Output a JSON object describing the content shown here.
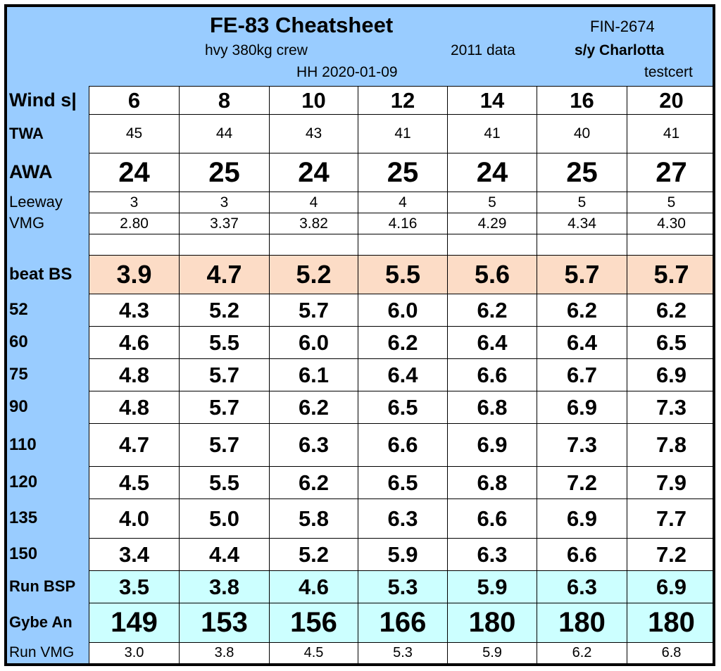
{
  "header": {
    "title": "FE-83 Cheatsheet",
    "sail_number": "FIN-2674",
    "crew": "hvy 380kg crew",
    "data_year": "2011 data",
    "yacht": "s/y Charlotta",
    "author_date": "HH 2020-01-09",
    "cert": "testcert"
  },
  "columns": {
    "label": "Wind s|",
    "wind_speeds": [
      "6",
      "8",
      "10",
      "12",
      "14",
      "16",
      "20"
    ]
  },
  "rows": {
    "twa": {
      "label": "TWA",
      "values": [
        "45",
        "44",
        "43",
        "41",
        "41",
        "40",
        "41"
      ]
    },
    "awa": {
      "label": "AWA",
      "values": [
        "24",
        "25",
        "24",
        "25",
        "24",
        "25",
        "27"
      ]
    },
    "leeway": {
      "label": "Leeway",
      "values": [
        "3",
        "3",
        "4",
        "4",
        "5",
        "5",
        "5"
      ]
    },
    "vmg": {
      "label": "VMG",
      "values": [
        "2.80",
        "3.37",
        "3.82",
        "4.16",
        "4.29",
        "4.34",
        "4.30"
      ]
    },
    "beat_bsp": {
      "label": "beat BS",
      "values": [
        "3.9",
        "4.7",
        "5.2",
        "5.5",
        "5.6",
        "5.7",
        "5.7"
      ]
    },
    "twa_52": {
      "label": "52",
      "values": [
        "4.3",
        "5.2",
        "5.7",
        "6.0",
        "6.2",
        "6.2",
        "6.2"
      ]
    },
    "twa_60": {
      "label": "60",
      "values": [
        "4.6",
        "5.5",
        "6.0",
        "6.2",
        "6.4",
        "6.4",
        "6.5"
      ]
    },
    "twa_75": {
      "label": "75",
      "values": [
        "4.8",
        "5.7",
        "6.1",
        "6.4",
        "6.6",
        "6.7",
        "6.9"
      ]
    },
    "twa_90": {
      "label": "90",
      "values": [
        "4.8",
        "5.7",
        "6.2",
        "6.5",
        "6.8",
        "6.9",
        "7.3"
      ]
    },
    "twa_110": {
      "label": "110",
      "values": [
        "4.7",
        "5.7",
        "6.3",
        "6.6",
        "6.9",
        "7.3",
        "7.8"
      ]
    },
    "twa_120": {
      "label": "120",
      "values": [
        "4.5",
        "5.5",
        "6.2",
        "6.5",
        "6.8",
        "7.2",
        "7.9"
      ]
    },
    "twa_135": {
      "label": "135",
      "values": [
        "4.0",
        "5.0",
        "5.8",
        "6.3",
        "6.6",
        "6.9",
        "7.7"
      ]
    },
    "twa_150": {
      "label": "150",
      "values": [
        "3.4",
        "4.4",
        "5.2",
        "5.9",
        "6.3",
        "6.6",
        "7.2"
      ]
    },
    "run_bsp": {
      "label": "Run BSP",
      "values": [
        "3.5",
        "3.8",
        "4.6",
        "5.3",
        "5.9",
        "6.3",
        "6.9"
      ]
    },
    "gybe_angle": {
      "label": "Gybe An",
      "values": [
        "149",
        "153",
        "156",
        "166",
        "180",
        "180",
        "180"
      ]
    },
    "run_vmg": {
      "label": "Run VMG",
      "values": [
        "3.0",
        "3.8",
        "4.5",
        "5.3",
        "5.9",
        "6.2",
        "6.8"
      ]
    }
  },
  "colors": {
    "header_bg": "#99ccff",
    "beat_band": "#fcdcc6",
    "run_band": "#ccffff"
  }
}
